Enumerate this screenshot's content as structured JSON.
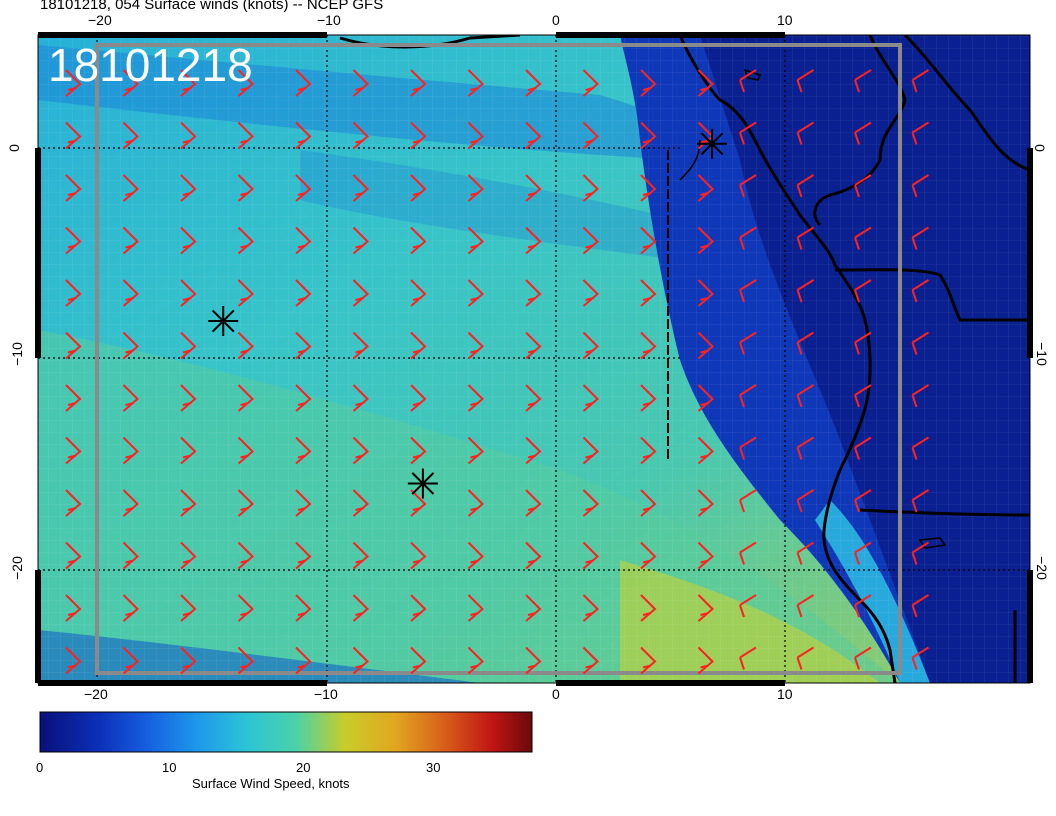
{
  "title": "18101218, 054 Surface winds (knots) -- NCEP GFS",
  "stamp": "18101218",
  "axes": {
    "lon_ticks": [
      "−20",
      "−10",
      "0",
      "10"
    ],
    "lat_ticks": [
      "0",
      "−10",
      "−20"
    ]
  },
  "colorbar": {
    "label": "Surface Wind Speed, knots",
    "ticks": [
      "0",
      "10",
      "20",
      "30"
    ],
    "colors": [
      "#08107a",
      "#0d2fb8",
      "#1660e0",
      "#1e98ec",
      "#2cc4d6",
      "#4ad2a8",
      "#7cd078",
      "#c8cc2a",
      "#e0a820",
      "#d8601a",
      "#c01414",
      "#6a0a0a"
    ]
  },
  "markers": [
    {
      "name": "center-marker-1",
      "lon": -14.5,
      "lat": -8.2
    },
    {
      "name": "center-marker-2",
      "lon": -5.8,
      "lat": -15.9
    },
    {
      "name": "center-marker-3",
      "lon": 6.8,
      "lat": 0.2
    }
  ],
  "colors": {
    "barb": "#ff2020",
    "coast": "#000000",
    "grid": "#000000"
  }
}
